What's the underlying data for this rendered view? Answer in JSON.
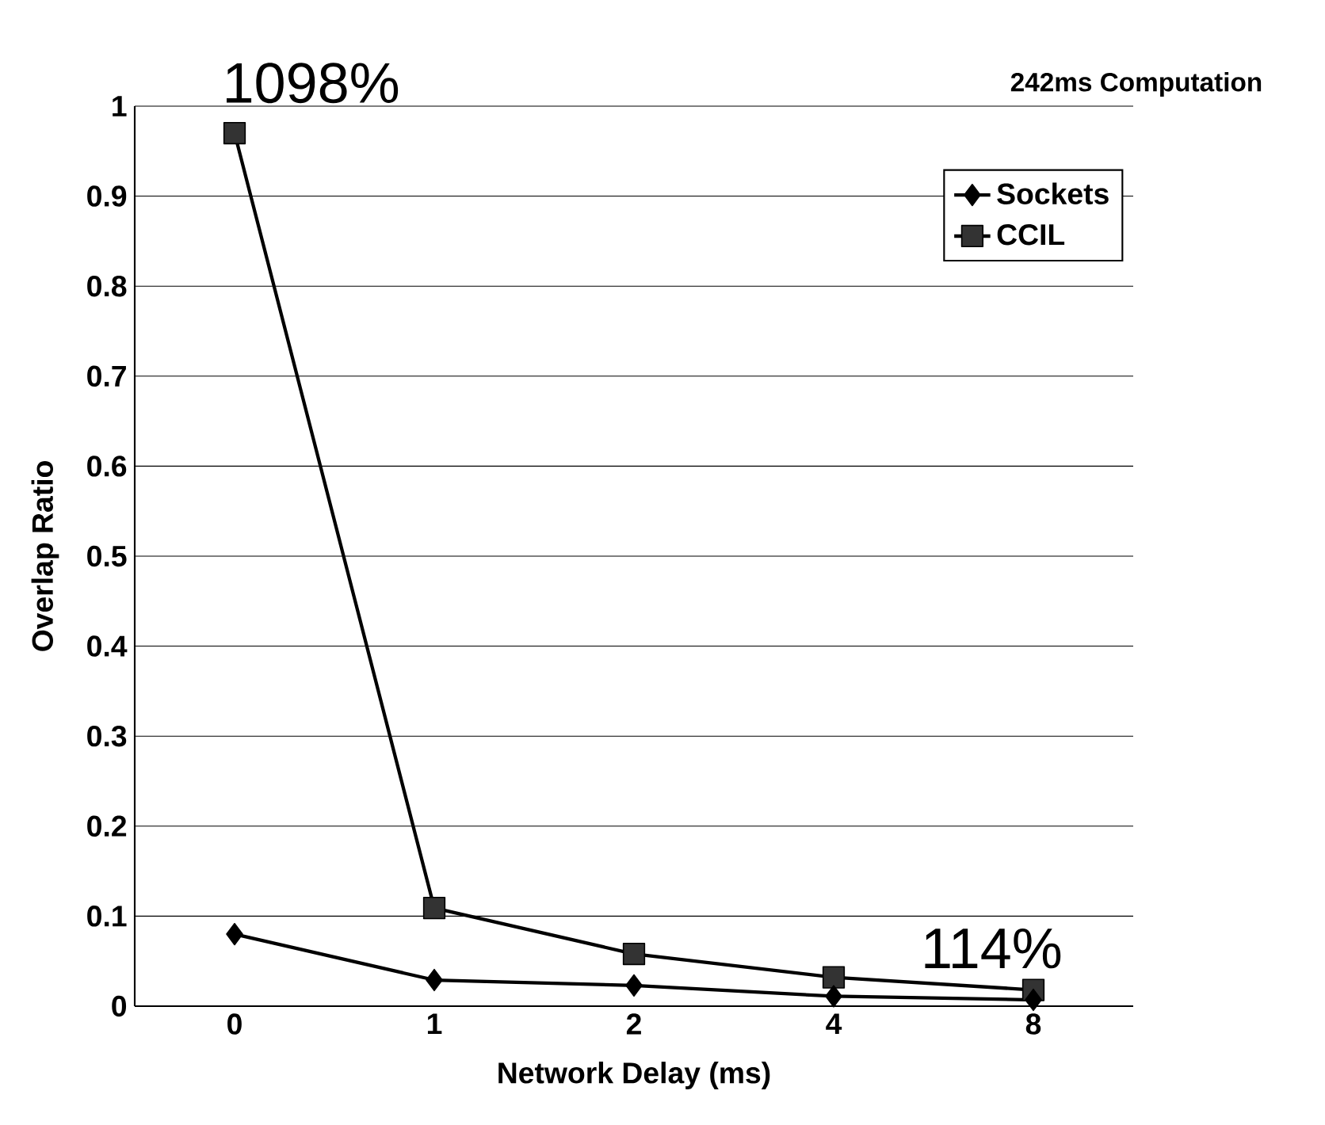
{
  "chart_data": {
    "type": "line",
    "title": "242ms Computation",
    "xlabel": "Network Delay (ms)",
    "ylabel": "Overlap Ratio",
    "categories": [
      "0",
      "1",
      "2",
      "4",
      "8"
    ],
    "series": [
      {
        "name": "Sockets",
        "color": "#000000",
        "marker": "diamond",
        "values": [
          0.08,
          0.029,
          0.023,
          0.011,
          0.007
        ]
      },
      {
        "name": "CCIL",
        "color": "#333333",
        "marker": "square",
        "values": [
          0.97,
          0.109,
          0.058,
          0.032,
          0.018
        ]
      }
    ],
    "ylim": [
      0,
      1
    ],
    "yticks": [
      0,
      0.1,
      0.2,
      0.3,
      0.4,
      0.5,
      0.6,
      0.7,
      0.8,
      0.9,
      1
    ],
    "grid": "y",
    "legend": "top right",
    "line_style": "solid",
    "annotations": [
      {
        "text": "1098%",
        "x": "0",
        "y": 0.97
      },
      {
        "text": "114%",
        "x": "8",
        "y": 0.018
      }
    ]
  }
}
